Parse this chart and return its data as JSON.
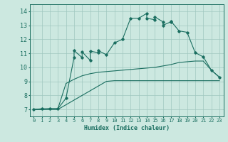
{
  "xlabel": "Humidex (Indice chaleur)",
  "bg_color": "#cce8e0",
  "grid_color": "#a0c8c0",
  "line_color": "#1a6e60",
  "xlim": [
    -0.5,
    23.5
  ],
  "ylim": [
    6.5,
    14.5
  ],
  "xticks": [
    0,
    1,
    2,
    3,
    4,
    5,
    6,
    7,
    8,
    9,
    10,
    11,
    12,
    13,
    14,
    15,
    16,
    17,
    18,
    19,
    20,
    21,
    22,
    23
  ],
  "yticks": [
    7,
    8,
    9,
    10,
    11,
    12,
    13,
    14
  ],
  "line1_x": [
    0,
    1,
    2,
    3,
    4,
    5,
    5,
    6,
    6,
    7,
    7,
    8,
    8,
    9,
    10,
    11,
    12,
    13,
    14,
    14,
    15,
    15,
    16,
    16,
    17,
    17,
    18,
    19,
    20,
    21,
    22,
    23
  ],
  "line1_y": [
    7.0,
    7.05,
    7.05,
    7.05,
    7.8,
    10.7,
    11.2,
    10.7,
    11.1,
    10.5,
    11.15,
    11.05,
    11.2,
    10.9,
    11.75,
    12.0,
    13.5,
    13.5,
    13.85,
    13.5,
    13.4,
    13.6,
    13.25,
    13.0,
    13.25,
    13.3,
    12.6,
    12.5,
    11.05,
    10.75,
    9.8,
    9.3
  ],
  "line2_x": [
    0,
    1,
    2,
    3,
    4,
    5,
    6,
    7,
    8,
    9,
    10,
    11,
    12,
    13,
    14,
    15,
    16,
    17,
    18,
    19,
    20,
    21,
    22,
    23
  ],
  "line2_y": [
    7.0,
    7.0,
    7.05,
    7.05,
    8.85,
    9.15,
    9.4,
    9.55,
    9.65,
    9.7,
    9.75,
    9.8,
    9.85,
    9.9,
    9.95,
    10.0,
    10.1,
    10.2,
    10.35,
    10.4,
    10.45,
    10.45,
    9.8,
    9.3
  ],
  "line3_x": [
    0,
    2,
    3,
    9,
    10,
    11,
    12,
    13,
    14,
    15,
    16,
    17,
    18,
    19,
    23
  ],
  "line3_y": [
    7.0,
    7.0,
    7.0,
    9.0,
    9.05,
    9.05,
    9.05,
    9.05,
    9.05,
    9.05,
    9.05,
    9.05,
    9.05,
    9.05,
    9.05
  ]
}
